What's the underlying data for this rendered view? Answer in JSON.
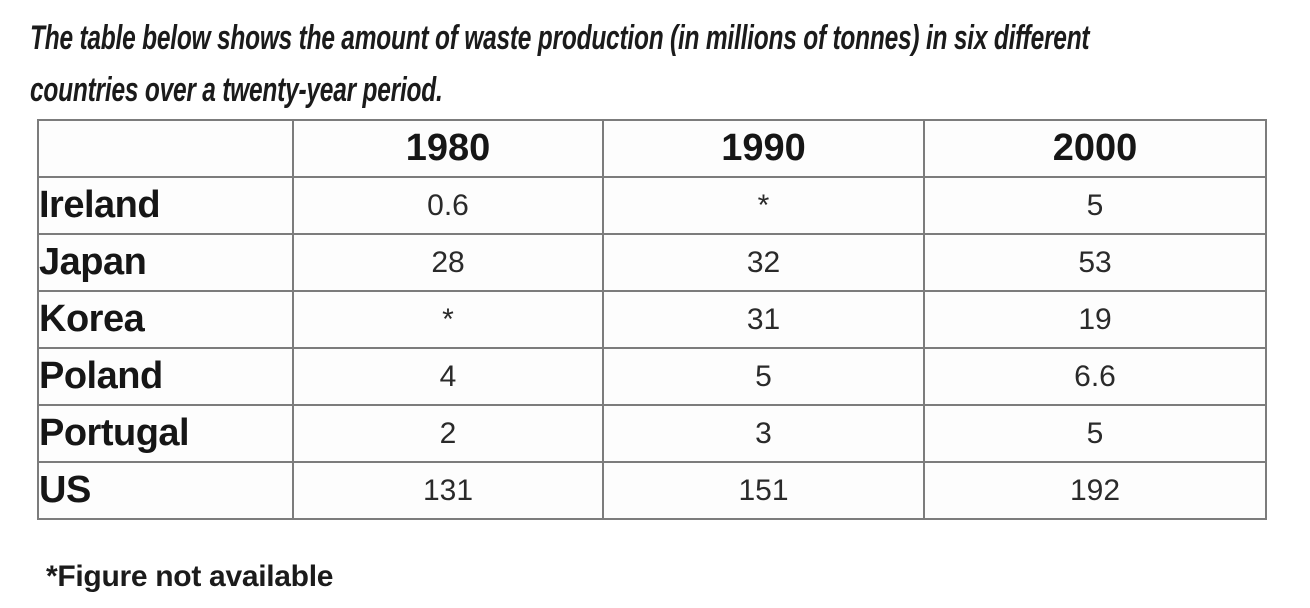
{
  "page": {
    "heading_line1": "The table below shows the amount of waste production (in millions of tonnes) in six different",
    "heading_line2": "countries over a twenty-year period.",
    "footnote": "*Figure not available"
  },
  "table": {
    "corner_label": "",
    "years": [
      "1980",
      "1990",
      "2000"
    ],
    "rows": [
      {
        "country": "Ireland",
        "values": [
          "0.6",
          "*",
          "5"
        ]
      },
      {
        "country": "Japan",
        "values": [
          "28",
          "32",
          "53"
        ]
      },
      {
        "country": "Korea",
        "values": [
          "*",
          "31",
          "19"
        ]
      },
      {
        "country": "Poland",
        "values": [
          "4",
          "5",
          "6.6"
        ]
      },
      {
        "country": "Portugal",
        "values": [
          "2",
          "3",
          "5"
        ]
      },
      {
        "country": "US",
        "values": [
          "131",
          "151",
          "192"
        ]
      }
    ]
  },
  "chart_data": {
    "type": "table",
    "title": "The table below shows the amount of waste production (in millions of tonnes) in six different countries over a twenty-year period.",
    "unit": "millions of tonnes",
    "categories": [
      "1980",
      "1990",
      "2000"
    ],
    "series": [
      {
        "name": "Ireland",
        "values": [
          0.6,
          null,
          5
        ]
      },
      {
        "name": "Japan",
        "values": [
          28,
          32,
          53
        ]
      },
      {
        "name": "Korea",
        "values": [
          null,
          31,
          19
        ]
      },
      {
        "name": "Poland",
        "values": [
          4,
          5,
          6.6
        ]
      },
      {
        "name": "Portugal",
        "values": [
          2,
          3,
          5
        ]
      },
      {
        "name": "US",
        "values": [
          131,
          151,
          192
        ]
      }
    ],
    "missing_value_marker": "*",
    "footnote": "*Figure not available"
  },
  "colors": {
    "heading_text": "#1b1b1b",
    "bold_text": "#161616",
    "number_text": "#2a2a2a",
    "grid_border": "#7c7c7c",
    "outer_border": "#5f5f5f",
    "background": "#ffffff"
  }
}
